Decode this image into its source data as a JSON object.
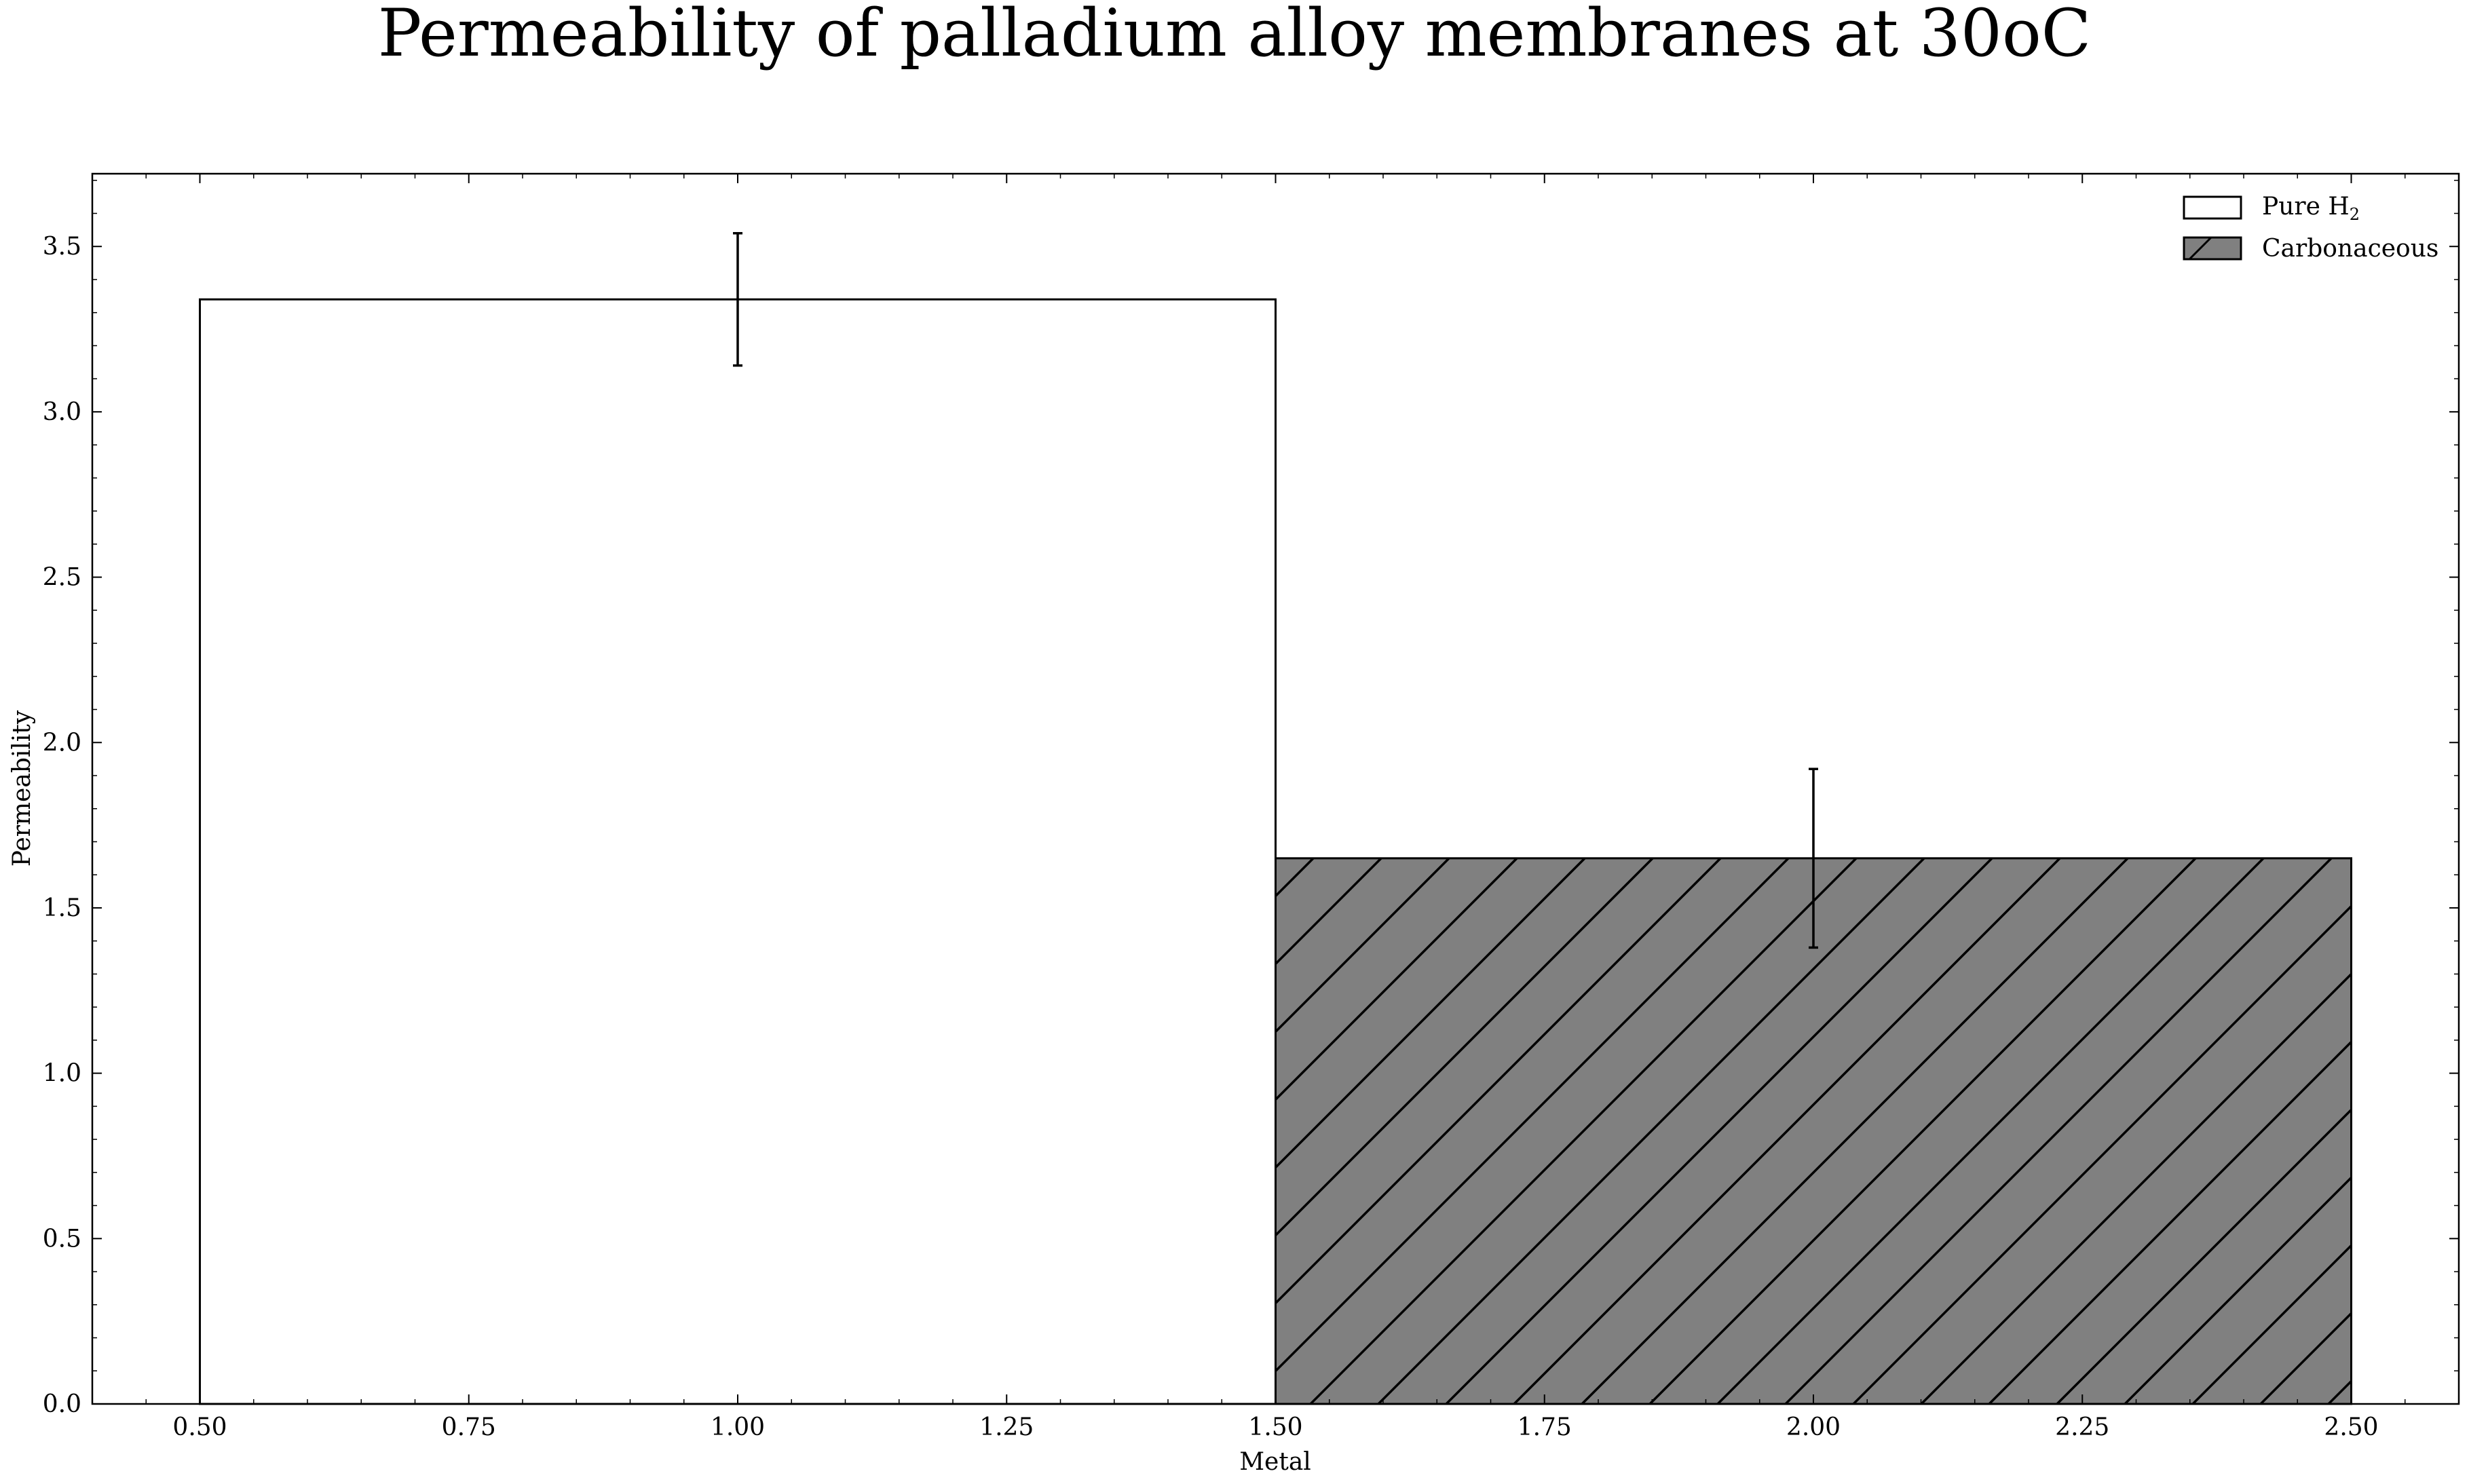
{
  "chart_data": {
    "type": "bar",
    "title": "Permeability of palladium alloy membranes at 30oC",
    "xlabel": "Metal",
    "ylabel": "Permeability",
    "xlim": [
      0.4,
      2.6
    ],
    "ylim": [
      0,
      3.72
    ],
    "xticks": [
      0.5,
      0.75,
      1.0,
      1.25,
      1.5,
      1.75,
      2.0,
      2.25,
      2.5
    ],
    "xtick_labels": [
      "0.50",
      "0.75",
      "1.00",
      "1.25",
      "1.50",
      "1.75",
      "2.00",
      "2.25",
      "2.50"
    ],
    "yticks": [
      0.0,
      0.5,
      1.0,
      1.5,
      2.0,
      2.5,
      3.0,
      3.5
    ],
    "ytick_labels": [
      "0.0",
      "0.5",
      "1.0",
      "1.5",
      "2.0",
      "2.5",
      "3.0",
      "3.5"
    ],
    "grid": false,
    "legend_position": "top-right",
    "series": [
      {
        "name": "Pure H",
        "name_subscript": "2",
        "x": 1.0,
        "width": 1.0,
        "value": 3.34,
        "error": 0.2,
        "fill": "#ffffff",
        "hatch": "none"
      },
      {
        "name": "Carbonaceous",
        "x": 2.0,
        "width": 1.0,
        "value": 1.65,
        "error": 0.27,
        "fill": "#808080",
        "hatch": "forward-diagonal"
      }
    ]
  }
}
